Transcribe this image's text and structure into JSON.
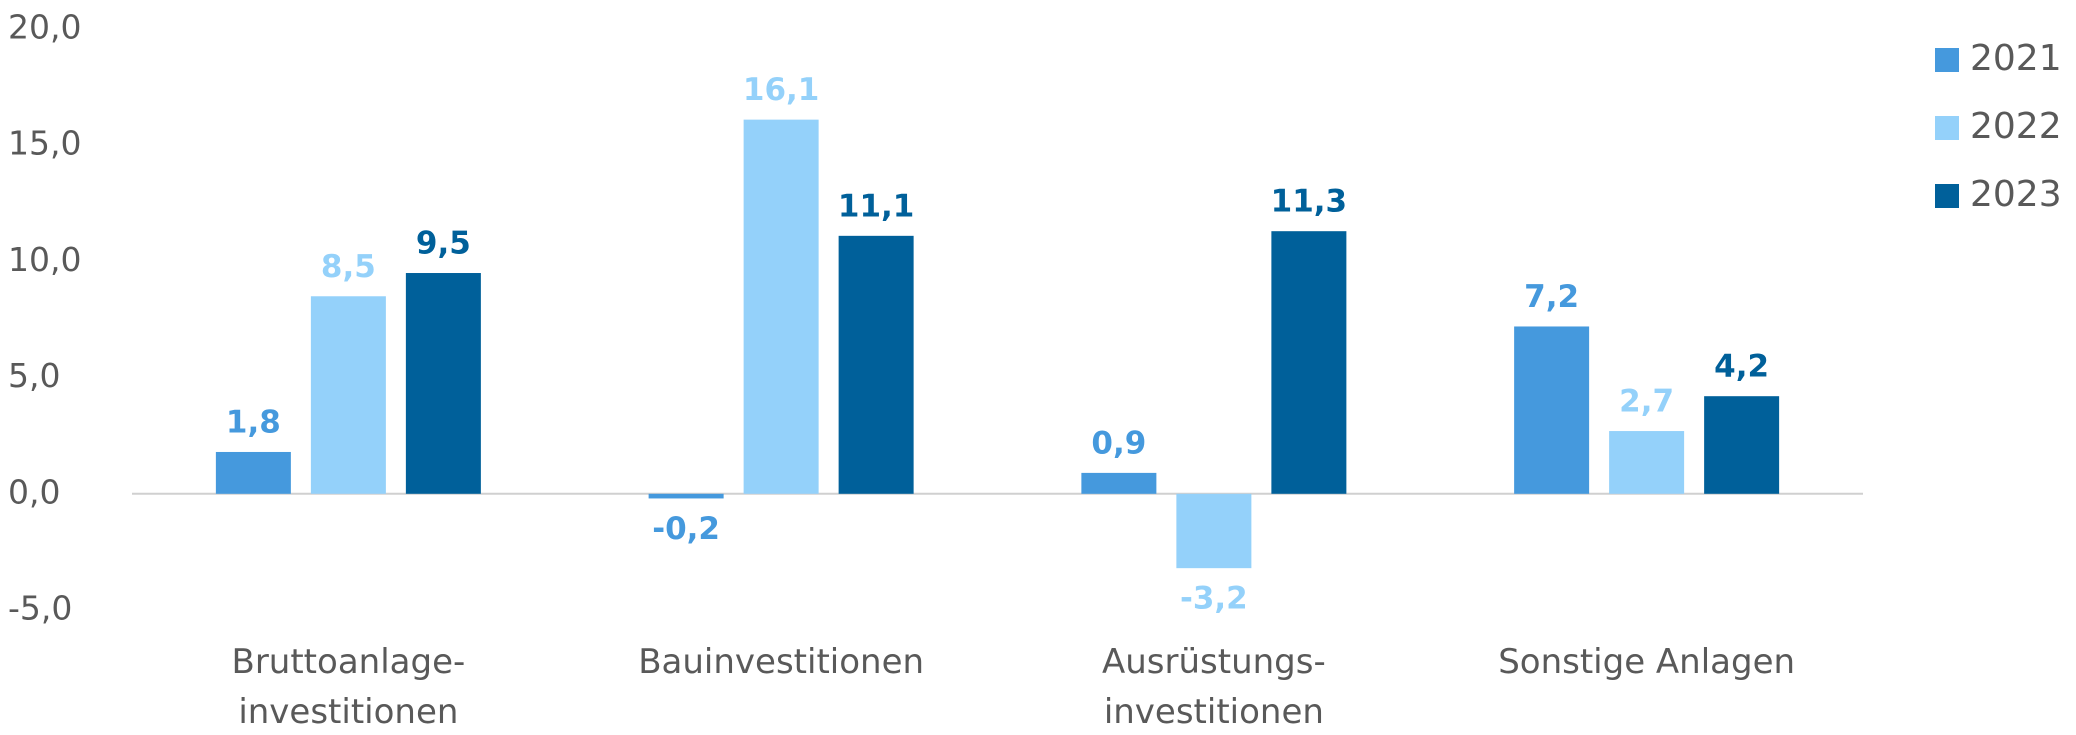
{
  "chart_data": {
    "type": "bar",
    "categories": [
      [
        "Bruttoanlage-",
        "investitionen"
      ],
      [
        "Bauinvestitionen"
      ],
      [
        "Ausrüstungs-",
        "investitionen"
      ],
      [
        "Sonstige Anlagen"
      ]
    ],
    "series": [
      {
        "name": "2021",
        "color": "#4599dd",
        "values": [
          1.8,
          -0.2,
          0.9,
          7.2
        ],
        "value_labels": [
          "1,8",
          "-0,2",
          "0,9",
          "7,2"
        ]
      },
      {
        "name": "2022",
        "color": "#94d1fa",
        "values": [
          8.5,
          16.1,
          -3.2,
          2.7
        ],
        "value_labels": [
          "8,5",
          "16,1",
          "-3,2",
          "2,7"
        ]
      },
      {
        "name": "2023",
        "color": "#00609a",
        "values": [
          9.5,
          11.1,
          11.3,
          4.2
        ],
        "value_labels": [
          "9,5",
          "11,1",
          "11,3",
          "4,2"
        ]
      }
    ],
    "ylim": [
      -5,
      20
    ],
    "yticks": [
      {
        "value": -5,
        "label": "-5,0"
      },
      {
        "value": 0,
        "label": "0,0"
      },
      {
        "value": 5,
        "label": "5,0"
      },
      {
        "value": 10,
        "label": "10,0"
      },
      {
        "value": 15,
        "label": "15,0"
      },
      {
        "value": 20,
        "label": "20,0"
      }
    ],
    "legend": "right"
  }
}
